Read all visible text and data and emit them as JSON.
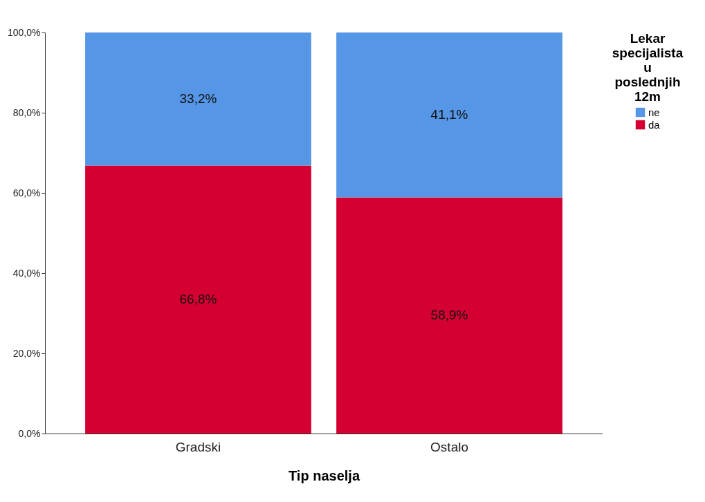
{
  "chart_data": {
    "type": "bar",
    "stacked": true,
    "xlabel": "Tip naselja",
    "legend_title": "Lekar specijalista u poslednjih 12m",
    "legend": "top right",
    "grid": false,
    "categories": [
      "Gradski",
      "Ostalo"
    ],
    "series": [
      {
        "name": "da",
        "color": "#d50032",
        "values": [
          66.8,
          58.9
        ],
        "value_labels": [
          "66,8%",
          "58,9%"
        ]
      },
      {
        "name": "ne",
        "color": "#5596e6",
        "values": [
          33.2,
          41.1
        ],
        "value_labels": [
          "33,2%",
          "41,1%"
        ]
      }
    ],
    "ylim": [
      0,
      100
    ],
    "yticks": [
      {
        "value": 0,
        "label": "0,0%"
      },
      {
        "value": 20,
        "label": "20,0%"
      },
      {
        "value": 40,
        "label": "40,0%"
      },
      {
        "value": 60,
        "label": "60,0%"
      },
      {
        "value": 80,
        "label": "80,0%"
      },
      {
        "value": 100,
        "label": "100,0%"
      }
    ]
  }
}
